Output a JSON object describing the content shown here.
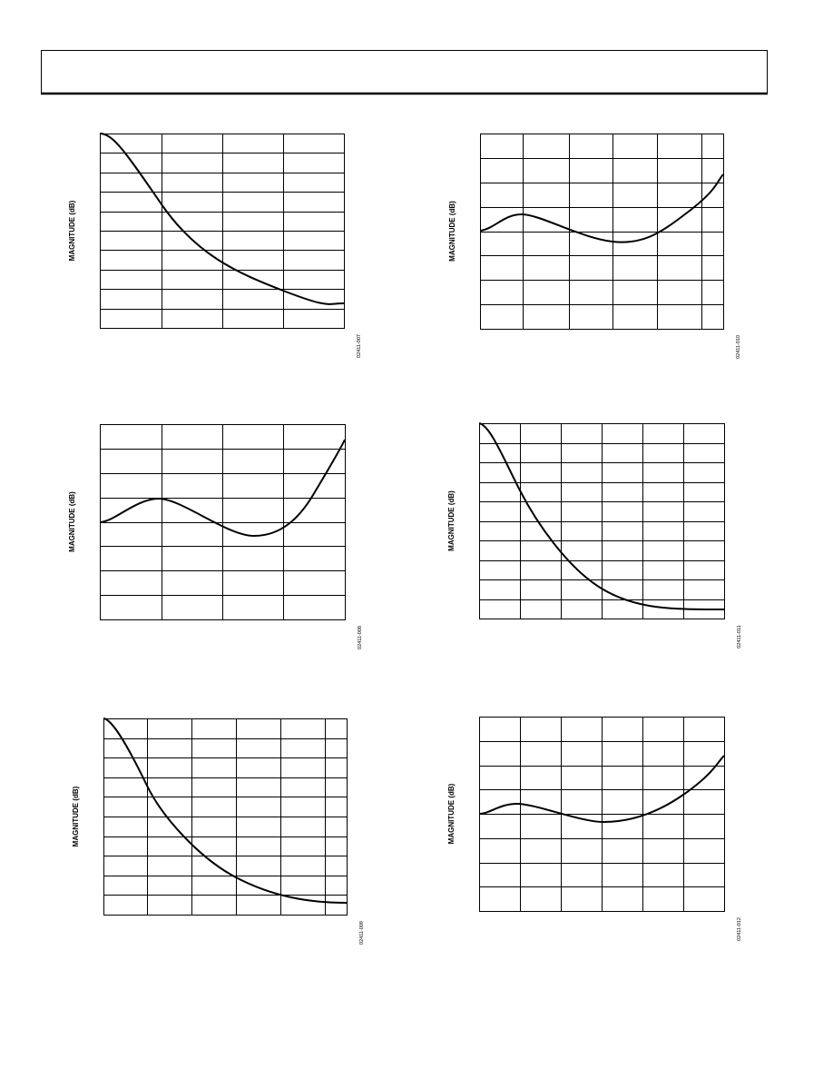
{
  "plots": [
    {
      "y_label": "MAGNITUDE (dB)",
      "figure_id": "02411-007"
    },
    {
      "y_label": "MAGNITUDE (dB)",
      "figure_id": "02411-010"
    },
    {
      "y_label": "MAGNITUDE (dB)",
      "figure_id": "02411-008"
    },
    {
      "y_label": "MAGNITUDE (dB)",
      "figure_id": "02411-011"
    },
    {
      "y_label": "MAGNITUDE (dB)",
      "figure_id": "02411-009"
    },
    {
      "y_label": "MAGNITUDE (dB)",
      "figure_id": "02411-012"
    }
  ]
}
